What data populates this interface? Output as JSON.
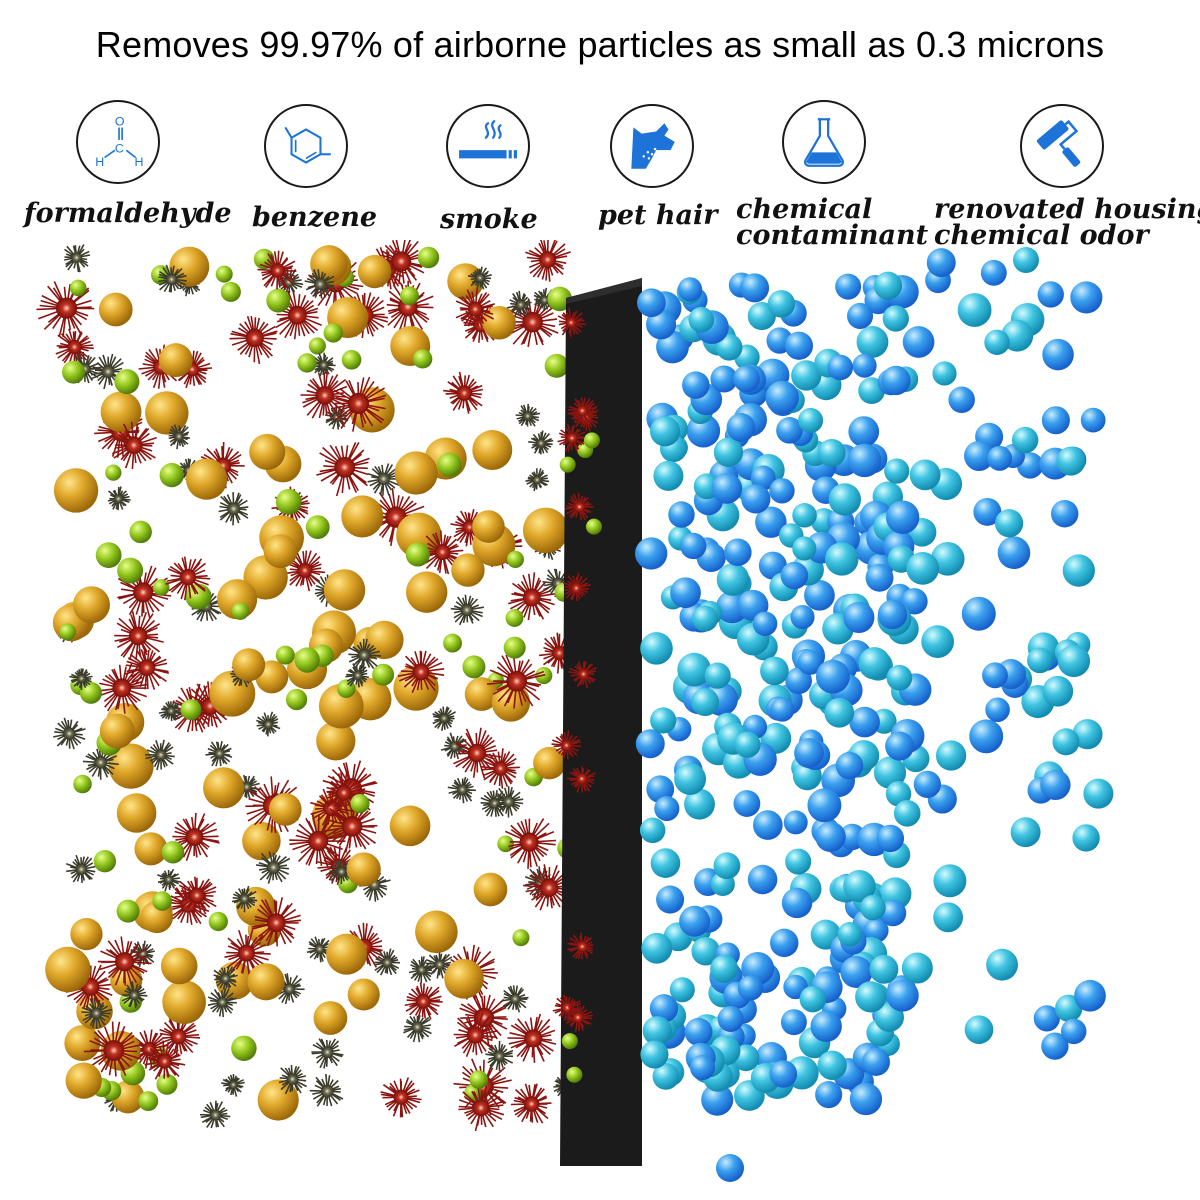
{
  "headline": "Removes 99.97% of airborne particles as small as 0.3 microns",
  "pollutants": [
    {
      "name": "formaldehyde-icon",
      "label": "formaldehyde"
    },
    {
      "name": "benzene-icon",
      "label": "benzene"
    },
    {
      "name": "smoke-icon",
      "label": "smoke"
    },
    {
      "name": "pet-hair-icon",
      "label": "pet hair"
    },
    {
      "name": "flask-icon",
      "label_line1": "chemical",
      "label_line2": "contaminant"
    },
    {
      "name": "paint-roller-icon",
      "label_line1": "renovated housing",
      "label_line2": "chemical odor"
    }
  ],
  "formaldehyde_letters": {
    "o": "O",
    "c": "C",
    "h": "H"
  },
  "colors": {
    "icon_blue": "#1e73d8",
    "filter": "#1b1b1b",
    "clean_blue": "#3aa0ee",
    "clean_cyan": "#37c2e0",
    "gold": "#d49a1c",
    "green": "#8cc01c",
    "red_spike": "#9a1512",
    "dark_spike": "#4a4a3a"
  }
}
